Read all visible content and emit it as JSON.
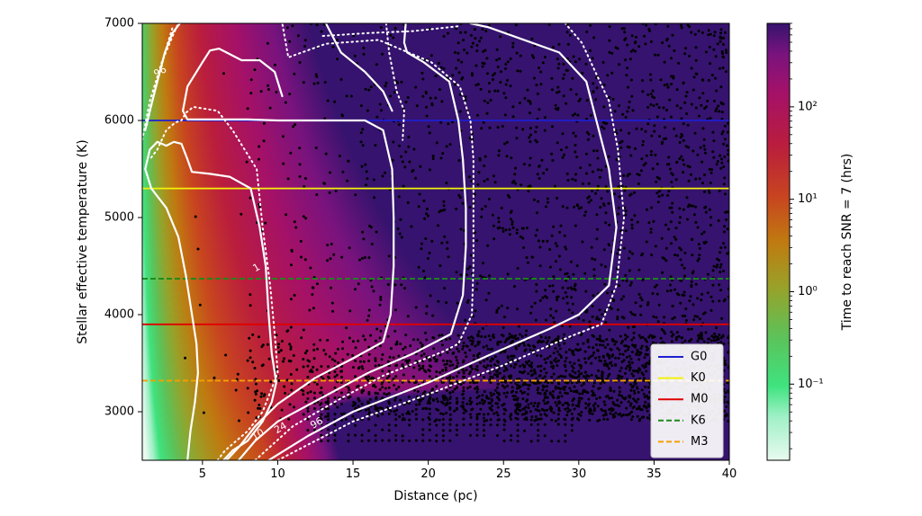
{
  "chart_data": {
    "type": "heatmap",
    "xlabel": "Distance (pc)",
    "ylabel": "Stellar effective temperature (K)",
    "xlim": [
      1,
      40
    ],
    "ylim": [
      2500,
      7000
    ],
    "x_ticks": [
      5,
      10,
      15,
      20,
      25,
      30,
      35,
      40
    ],
    "y_ticks": [
      3000,
      4000,
      5000,
      6000,
      7000
    ],
    "colorbar": {
      "label": "Time to reach SNR = 7 (hrs)",
      "scale": "log",
      "range": [
        0.015,
        800
      ],
      "ticks": [
        {
          "value": 0.1,
          "label": "10⁻¹"
        },
        {
          "value": 1,
          "label": "10⁰"
        },
        {
          "value": 10,
          "label": "10¹"
        },
        {
          "value": 100,
          "label": "10²"
        }
      ]
    },
    "reference_lines": [
      {
        "name": "G0",
        "teff": 6000,
        "color": "#1f1fd0",
        "dashed": false
      },
      {
        "name": "K0",
        "teff": 5300,
        "color": "#f2f20a",
        "dashed": false
      },
      {
        "name": "M0",
        "teff": 3900,
        "color": "#e00000",
        "dashed": false
      },
      {
        "name": "K6",
        "teff": 4370,
        "color": "#1a8a1a",
        "dashed": true
      },
      {
        "name": "M3",
        "teff": 3320,
        "color": "#f5a000",
        "dashed": true
      }
    ],
    "legend_placement": "bottom-right",
    "contours": [
      {
        "level": "1",
        "style": "solid",
        "points": [
          [
            4.0,
            2500
          ],
          [
            4.2,
            2800
          ],
          [
            4.5,
            3100
          ],
          [
            4.7,
            3400
          ],
          [
            4.6,
            3700
          ],
          [
            4.3,
            4000
          ],
          [
            3.9,
            4400
          ],
          [
            3.4,
            4800
          ],
          [
            2.6,
            5100
          ],
          [
            1.6,
            5300
          ],
          [
            1.2,
            5500
          ],
          [
            1.5,
            5700
          ],
          [
            2.0,
            5780
          ],
          [
            2.6,
            5740
          ],
          [
            3.1,
            5780
          ],
          [
            3.6,
            5760
          ],
          [
            4.0,
            5600
          ],
          [
            4.3,
            5470
          ],
          [
            5.5,
            5450
          ],
          [
            6.8,
            5420
          ],
          [
            8.2,
            5300
          ],
          [
            8.8,
            4900
          ],
          [
            9.2,
            4500
          ],
          [
            9.4,
            4000
          ],
          [
            9.6,
            3600
          ],
          [
            9.9,
            3300
          ],
          [
            9.6,
            3100
          ],
          [
            9.0,
            2900
          ],
          [
            8.0,
            2700
          ],
          [
            7.0,
            2600
          ],
          [
            6.4,
            2500
          ]
        ]
      },
      {
        "level": "10",
        "style": "solid",
        "points": [
          [
            6.6,
            2500
          ],
          [
            7.5,
            2650
          ],
          [
            8.5,
            2850
          ],
          [
            10,
            3080
          ],
          [
            12.5,
            3350
          ],
          [
            15,
            3550
          ],
          [
            17,
            3720
          ],
          [
            17.5,
            4000
          ],
          [
            17.7,
            4500
          ],
          [
            17.7,
            5000
          ],
          [
            17.6,
            5500
          ],
          [
            17.0,
            5900
          ],
          [
            15.8,
            6000
          ],
          [
            10,
            6000
          ],
          [
            8,
            6010
          ],
          [
            6,
            6010
          ],
          [
            4.0,
            6010
          ],
          [
            3.7,
            6100
          ],
          [
            4.0,
            6350
          ],
          [
            5.0,
            6600
          ],
          [
            5.5,
            6720
          ],
          [
            6.1,
            6740
          ],
          [
            7.6,
            6620
          ],
          [
            8.8,
            6620
          ],
          [
            9.8,
            6500
          ],
          [
            10.3,
            6250
          ]
        ]
      },
      {
        "level": "24",
        "style": "solid",
        "points": [
          [
            7.4,
            2500
          ],
          [
            8.5,
            2700
          ],
          [
            10,
            2900
          ],
          [
            13,
            3150
          ],
          [
            16,
            3400
          ],
          [
            19,
            3600
          ],
          [
            21.5,
            3800
          ],
          [
            22.3,
            4200
          ],
          [
            22.5,
            4700
          ],
          [
            22.5,
            5100
          ],
          [
            22.3,
            5600
          ],
          [
            22,
            6000
          ],
          [
            21.4,
            6400
          ],
          [
            19.7,
            6600
          ],
          [
            18.6,
            6700
          ],
          [
            18.4,
            6800
          ],
          [
            18.5,
            7000
          ]
        ]
      },
      {
        "level": "96",
        "style": "solid",
        "points": [
          [
            9.4,
            2500
          ],
          [
            12,
            2750
          ],
          [
            15,
            3000
          ],
          [
            20,
            3300
          ],
          [
            24,
            3580
          ],
          [
            28,
            3850
          ],
          [
            30,
            4000
          ],
          [
            32,
            4300
          ],
          [
            32.5,
            4900
          ],
          [
            32.0,
            5500
          ],
          [
            31.5,
            5800
          ],
          [
            30.5,
            6400
          ],
          [
            28.7,
            6700
          ],
          [
            24,
            6960
          ],
          [
            22.8,
            7000
          ]
        ]
      },
      {
        "level": "",
        "style": "solid",
        "points": [
          [
            3.5,
            7000
          ],
          [
            3.0,
            6900
          ],
          [
            2.5,
            6700
          ],
          [
            2.0,
            6400
          ],
          [
            1.5,
            6100
          ],
          [
            1.2,
            5900
          ]
        ]
      },
      {
        "level": "",
        "style": "solid",
        "points": [
          [
            13.2,
            7000
          ],
          [
            14.2,
            6700
          ],
          [
            15.8,
            6500
          ],
          [
            17,
            6300
          ],
          [
            17.6,
            6100
          ]
        ]
      },
      {
        "level": "",
        "style": "dotted",
        "points": [
          [
            6.0,
            2500
          ],
          [
            6.5,
            2600
          ],
          [
            8,
            2800
          ],
          [
            9,
            3000
          ],
          [
            10,
            3400
          ],
          [
            9.8,
            3800
          ],
          [
            9.5,
            4300
          ],
          [
            9,
            4900
          ],
          [
            8.6,
            5500
          ],
          [
            7.0,
            5900
          ],
          [
            6,
            6100
          ],
          [
            4.4,
            6140
          ],
          [
            3.9,
            6080
          ],
          [
            3.6,
            6000
          ],
          [
            3.2,
            5980
          ],
          [
            2.6,
            5900
          ],
          [
            2.0,
            5700
          ],
          [
            1.5,
            5600
          ]
        ]
      },
      {
        "level": "",
        "style": "dotted",
        "points": [
          [
            8.5,
            2500
          ],
          [
            11,
            2850
          ],
          [
            14,
            3120
          ],
          [
            17,
            3370
          ],
          [
            21,
            3620
          ],
          [
            22,
            3700
          ],
          [
            22.9,
            4000
          ],
          [
            23.0,
            4500
          ],
          [
            23.0,
            5100
          ],
          [
            23.0,
            5600
          ],
          [
            22.8,
            6000
          ],
          [
            22.1,
            6350
          ],
          [
            20.2,
            6600
          ],
          [
            16.7,
            6830
          ],
          [
            13.2,
            6790
          ],
          [
            10.7,
            6650
          ],
          [
            10.3,
            7000
          ]
        ]
      },
      {
        "level": "",
        "style": "dotted",
        "points": [
          [
            10,
            2500
          ],
          [
            12.5,
            2700
          ],
          [
            15,
            2900
          ],
          [
            20,
            3180
          ],
          [
            25,
            3480
          ],
          [
            29.5,
            3780
          ],
          [
            31.5,
            3900
          ],
          [
            32.5,
            4300
          ],
          [
            33.0,
            5000
          ],
          [
            32.6,
            5700
          ],
          [
            32.0,
            6200
          ],
          [
            30.2,
            6800
          ],
          [
            29.1,
            7000
          ]
        ]
      },
      {
        "level": "",
        "style": "dotted",
        "points": [
          [
            1.0,
            5800
          ],
          [
            1.5,
            6200
          ],
          [
            2.3,
            6600
          ],
          [
            3.1,
            6900
          ],
          [
            3.4,
            7000
          ]
        ]
      },
      {
        "level": "",
        "style": "dotted",
        "points": [
          [
            17.2,
            7000
          ],
          [
            17.4,
            6700
          ],
          [
            17.9,
            6300
          ],
          [
            18.4,
            6100
          ],
          [
            18.3,
            5800
          ]
        ]
      },
      {
        "level": "",
        "style": "dotted",
        "points": [
          [
            1.3,
            5950
          ],
          [
            1.9,
            6350
          ],
          [
            2.7,
            6800
          ],
          [
            3.0,
            6950
          ]
        ]
      },
      {
        "level": "",
        "style": "dotted",
        "points": [
          [
            13,
            6870
          ],
          [
            16,
            6900
          ],
          [
            19,
            6920
          ],
          [
            22,
            6970
          ]
        ]
      }
    ],
    "contour_labels": [
      {
        "text": "96",
        "x": 2.2,
        "y": 6500
      },
      {
        "text": "96",
        "x": 12.6,
        "y": 2880
      },
      {
        "text": "1",
        "x": 8.6,
        "y": 4480
      },
      {
        "text": "10",
        "x": 8.7,
        "y": 2760
      },
      {
        "text": "24",
        "x": 10.2,
        "y": 2830
      }
    ]
  }
}
